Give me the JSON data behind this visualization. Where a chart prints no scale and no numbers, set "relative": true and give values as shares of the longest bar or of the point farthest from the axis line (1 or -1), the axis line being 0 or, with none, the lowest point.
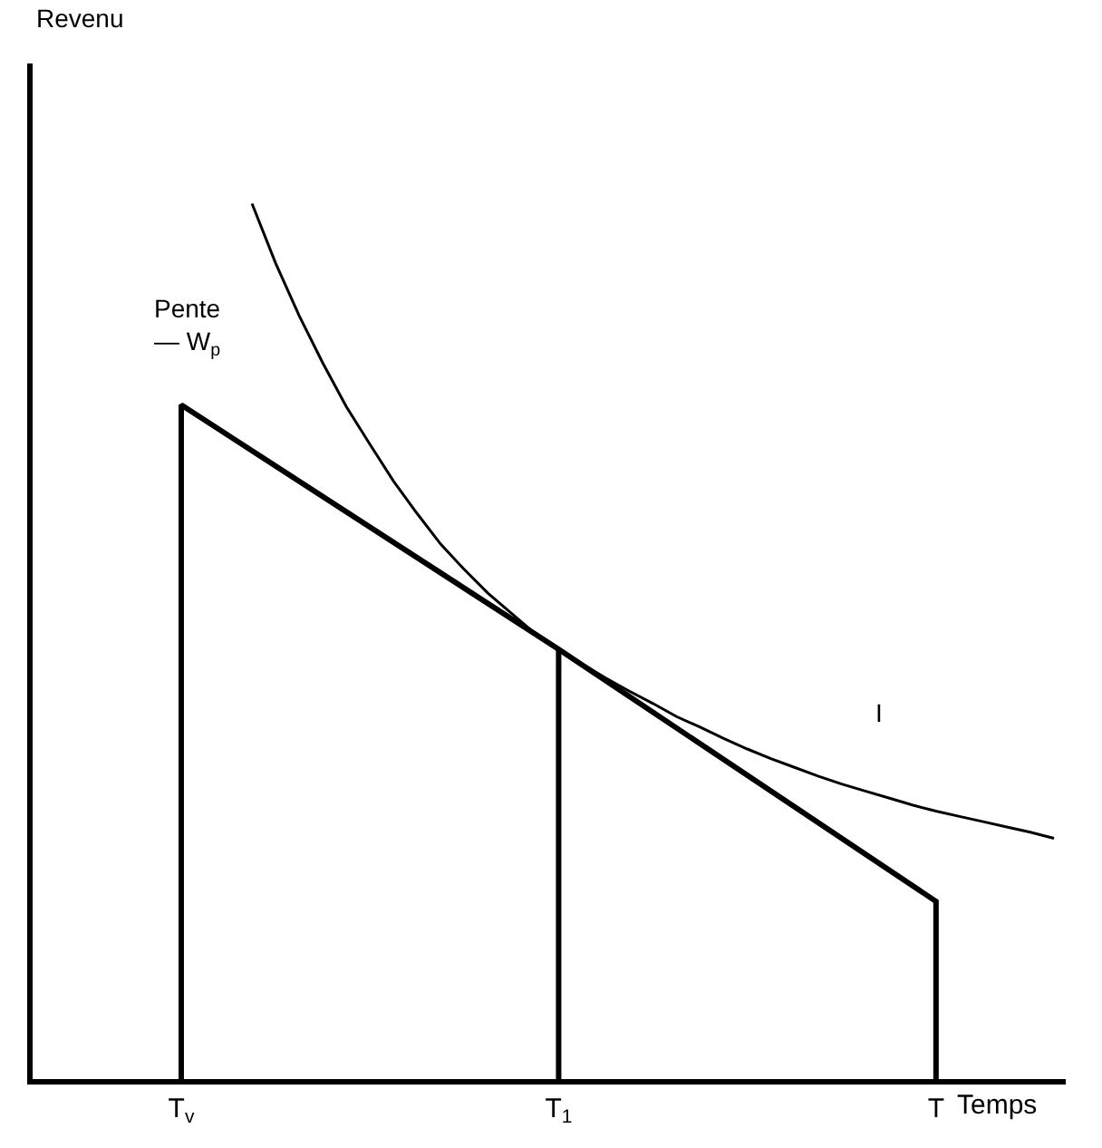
{
  "chart_data": {
    "type": "line",
    "relative": true,
    "xlabel": "Temps",
    "categories": [
      null,
      null,
      null,
      null,
      null,
      null,
      "T$_{v}$",
      null,
      null,
      null,
      null,
      null,
      null,
      null,
      null,
      null,
      null,
      null,
      null,
      null,
      null,
      null,
      "T$_{1}$",
      null,
      null,
      null,
      null,
      null,
      null,
      null,
      null,
      null,
      null,
      null,
      null,
      null,
      null,
      null,
      "T",
      null,
      null,
      null,
      null,
      null
    ],
    "series": [
      {
        "color": "#000000",
        "x": [
          "T$_{v}$",
          "T$_{v}$",
          "T$_{1}$",
          "T",
          "T"
        ],
        "values": [
          0,
          0.77,
          0.491,
          0.203,
          0
        ]
      },
      {
        "color": "#000000",
        "x": [
          "T$_{1}$",
          "T$_{1}$"
        ],
        "values": [
          0,
          0.491
        ]
      },
      {
        "color": "#000000",
        "values": [
          null,
          null,
          null,
          null,
          null,
          null,
          null,
          null,
          null,
          1.0,
          0.932,
          0.872,
          0.818,
          0.768,
          0.725,
          0.683,
          0.646,
          0.611,
          0.582,
          0.555,
          0.532,
          0.509,
          0.491,
          0.474,
          0.458,
          0.443,
          0.429,
          0.414,
          0.402,
          0.389,
          0.377,
          0.366,
          0.356,
          0.346,
          0.337,
          0.329,
          0.321,
          0.313,
          0.306,
          0.3,
          0.294,
          0.288,
          0.282,
          0.275
        ]
      }
    ],
    "annotations": [
      "Revenu",
      "Pente\n— W$_{p}$",
      "I"
    ],
    "grid": false,
    "marker": "none",
    "line_style": "solid"
  }
}
